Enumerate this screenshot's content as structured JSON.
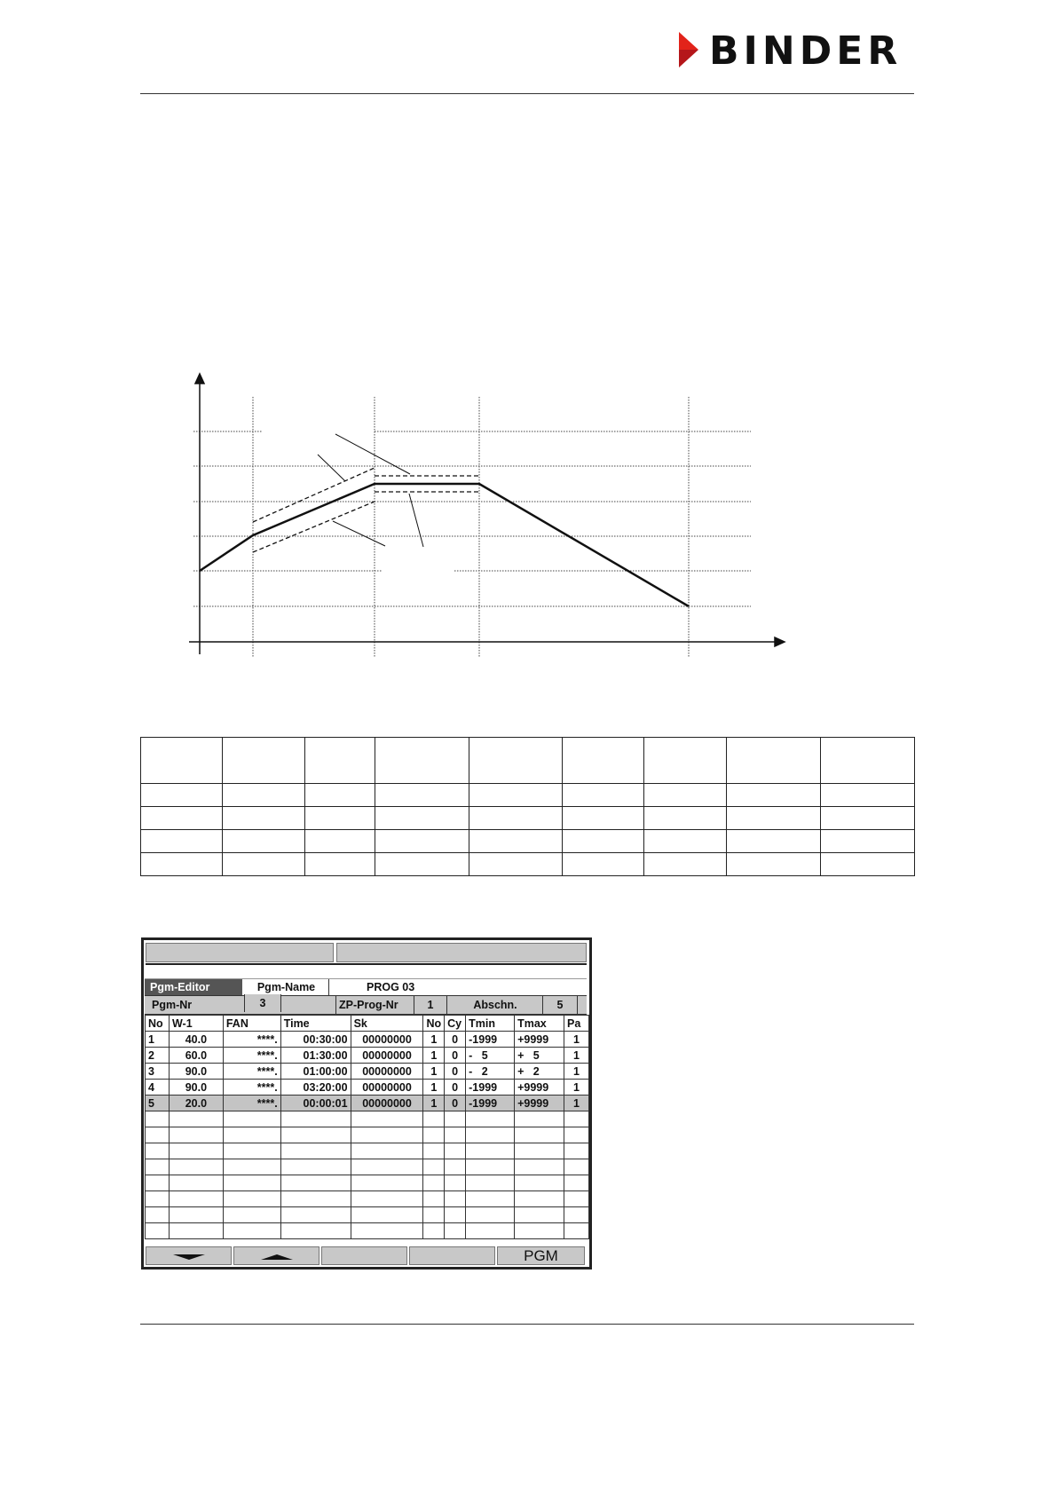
{
  "brand": {
    "logo_text": "BINDER",
    "accent": "#e2231a"
  },
  "screen": {
    "header": {
      "editor": "Pgm-Editor",
      "name_label": "Pgm-Name",
      "name_value": "PROG 03",
      "nr_label": "Pgm-Nr",
      "nr_value": "3",
      "zp_label": "ZP-Prog-Nr",
      "zp_value": "1",
      "section_label": "Abschn.",
      "section_value": "5"
    },
    "columns": [
      "No",
      "W-1",
      "FAN",
      "Time",
      "Sk",
      "No",
      "Cy",
      "Tmin",
      "Tmax",
      "Pa"
    ],
    "rows": [
      [
        "1",
        "40.0",
        "****.",
        "00:30:00",
        "00000000",
        "1",
        "0",
        "-1999",
        "+9999",
        "1"
      ],
      [
        "2",
        "60.0",
        "****.",
        "01:30:00",
        "00000000",
        "1",
        "0",
        "-   5",
        "+   5",
        "1"
      ],
      [
        "3",
        "90.0",
        "****.",
        "01:00:00",
        "00000000",
        "1",
        "0",
        "-   2",
        "+   2",
        "1"
      ],
      [
        "4",
        "90.0",
        "****.",
        "03:20:00",
        "00000000",
        "1",
        "0",
        "-1999",
        "+9999",
        "1"
      ],
      [
        "5",
        "20.0",
        "****.",
        "00:00:01",
        "00000000",
        "1",
        "0",
        "-1999",
        "+9999",
        "1"
      ]
    ],
    "selected_row": 5,
    "footer_buttons": {
      "down": "arrow-down",
      "up": "arrow-up",
      "pgm": "PGM"
    }
  }
}
